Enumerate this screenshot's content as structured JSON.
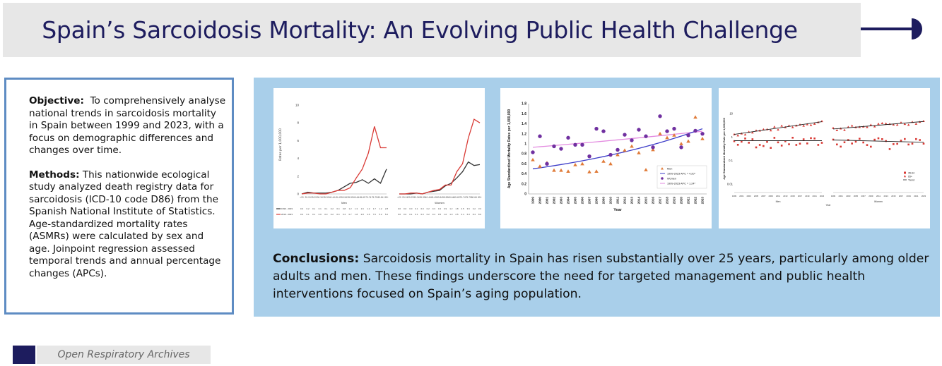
{
  "header": {
    "title": "Spain’s Sarcoidosis Mortality: An Evolving Public Health Challenge"
  },
  "summary": {
    "objective_label": "Objective:",
    "objective_text": "To comprehensively analyse national trends in sarcoidosis mortality in Spain between 1999 and 2023, with a focus on demographic differences and changes over time.",
    "methods_label": "Methods:",
    "methods_text": "This nationwide ecological study analyzed death registry data for sarcoidosis (ICD-10 code D86) from the Spanish National Institute of Statistics. Age-standardized mortality rates (ASMRs) were calculated by sex and age. Joinpoint regression assessed temporal trends and annual percentage changes (APCs)."
  },
  "conclusions": {
    "label": "Conclusions:",
    "text": "Sarcoidosis mortality in Spain has risen substantially over 25 years, particularly among older adults and men. These findings underscore the need for targeted management and public health interventions focused on Spain’s aging population."
  },
  "footer": {
    "journal": "Open Respiratory Archives"
  },
  "colors": {
    "navy": "#1d1c5e",
    "panel_blue": "#a9cfea",
    "box_border": "#5e8cc3",
    "red": "#d93a35",
    "dark": "#333333",
    "purple": "#7030a0",
    "orange": "#e07b39",
    "blue_line": "#3c3cc8",
    "pink_line": "#e38ae0"
  },
  "chart_data": [
    {
      "type": "line",
      "ylabel": "Rates per 1,000,000",
      "ylim": [
        0,
        10
      ],
      "yticks": [
        "0",
        "2",
        "4",
        "6",
        "8",
        "10"
      ],
      "categories": [
        "<20",
        "20-24",
        "25-29",
        "30-34",
        "35-39",
        "40-44",
        "45-49",
        "50-54",
        "55-59",
        "60-64",
        "65-69",
        "70-74",
        "75-79",
        "80-84",
        "85+"
      ],
      "panels": [
        "Men",
        "Women"
      ],
      "series": [
        {
          "name": "1999 - 2003",
          "panel": "Men",
          "values": [
            0.0,
            0.2,
            0.1,
            0.1,
            0.1,
            0.2,
            0.4,
            0.8,
            1.2,
            1.3,
            1.6,
            1.2,
            1.7,
            1.2,
            2.8
          ]
        },
        {
          "name": "2019 - 2023",
          "panel": "Men",
          "values": [
            0.0,
            0.1,
            0.1,
            0.0,
            0.0,
            0.2,
            0.4,
            0.4,
            0.7,
            1.8,
            2.8,
            4.6,
            7.6,
            5.2,
            5.2
          ]
        },
        {
          "name": "1999 - 2003",
          "panel": "Women",
          "values": [
            0.0,
            0.0,
            0.0,
            0.1,
            0.0,
            0.2,
            0.3,
            0.4,
            0.9,
            1.2,
            1.8,
            2.5,
            3.6,
            3.2,
            3.3
          ]
        },
        {
          "name": "2019 - 2023",
          "panel": "Women",
          "values": [
            0.0,
            0.0,
            0.1,
            0.1,
            0.0,
            0.2,
            0.4,
            0.5,
            1.0,
            1.0,
            2.5,
            3.4,
            6.3,
            8.4,
            8.0
          ]
        }
      ]
    },
    {
      "type": "scatter",
      "xlabel": "Year",
      "ylabel": "Age Standardized Mortality Rates per 1,000,000",
      "ylim": [
        0,
        1.8
      ],
      "yticks": [
        "0",
        "0.2",
        "0.4",
        "0.6",
        "0.8",
        "1",
        "1.2",
        "1.4",
        "1.6",
        "1.8"
      ],
      "x": [
        "1999",
        "2000",
        "2001",
        "2002",
        "2003",
        "2004",
        "2005",
        "2006",
        "2007",
        "2008",
        "2009",
        "2010",
        "2011",
        "2012",
        "2013",
        "2014",
        "2015",
        "2016",
        "2017",
        "2018",
        "2019",
        "2020",
        "2021",
        "2022",
        "2023"
      ],
      "legend_position": "bottom-right",
      "series": [
        {
          "name": "Men",
          "marker": "triangle",
          "values": [
            0.68,
            0.55,
            0.62,
            0.47,
            0.47,
            0.45,
            0.58,
            0.6,
            0.44,
            0.45,
            0.65,
            0.6,
            0.78,
            0.87,
            0.95,
            0.82,
            0.48,
            0.88,
            1.2,
            1.12,
            1.17,
            1.0,
            1.05,
            1.53,
            1.1
          ]
        },
        {
          "name": "Women",
          "marker": "circle",
          "values": [
            0.83,
            1.15,
            0.6,
            0.95,
            0.9,
            1.12,
            0.98,
            0.98,
            0.75,
            1.3,
            1.25,
            0.78,
            0.88,
            1.18,
            1.07,
            1.28,
            1.15,
            0.93,
            1.55,
            1.25,
            1.3,
            0.93,
            1.17,
            1.26,
            1.2
          ]
        }
      ],
      "trends": [
        {
          "name": "1999-2023 APC = 4.20*",
          "from": 0.5,
          "to": 1.3
        },
        {
          "name": "1999-2023 APC = 1.24*",
          "from": 0.93,
          "to": 1.25
        }
      ]
    },
    {
      "type": "scatter",
      "xlabel": "Year",
      "ylabel": "Age Standardized Mortality Rate per 1,000,000",
      "yscale": "log",
      "ylim": [
        0.01,
        10
      ],
      "yticks": [
        "0.01",
        "0.1",
        "1",
        "10"
      ],
      "panels": [
        "Men",
        "Women"
      ],
      "x": [
        "1999",
        "2001",
        "2003",
        "2005",
        "2007",
        "2009",
        "2011",
        "2013",
        "2015",
        "2017",
        "2019",
        "2021",
        "2023"
      ],
      "legend_position": "bottom-right",
      "legend": [
        "35-64",
        "65+",
        "Trend"
      ]
    }
  ]
}
